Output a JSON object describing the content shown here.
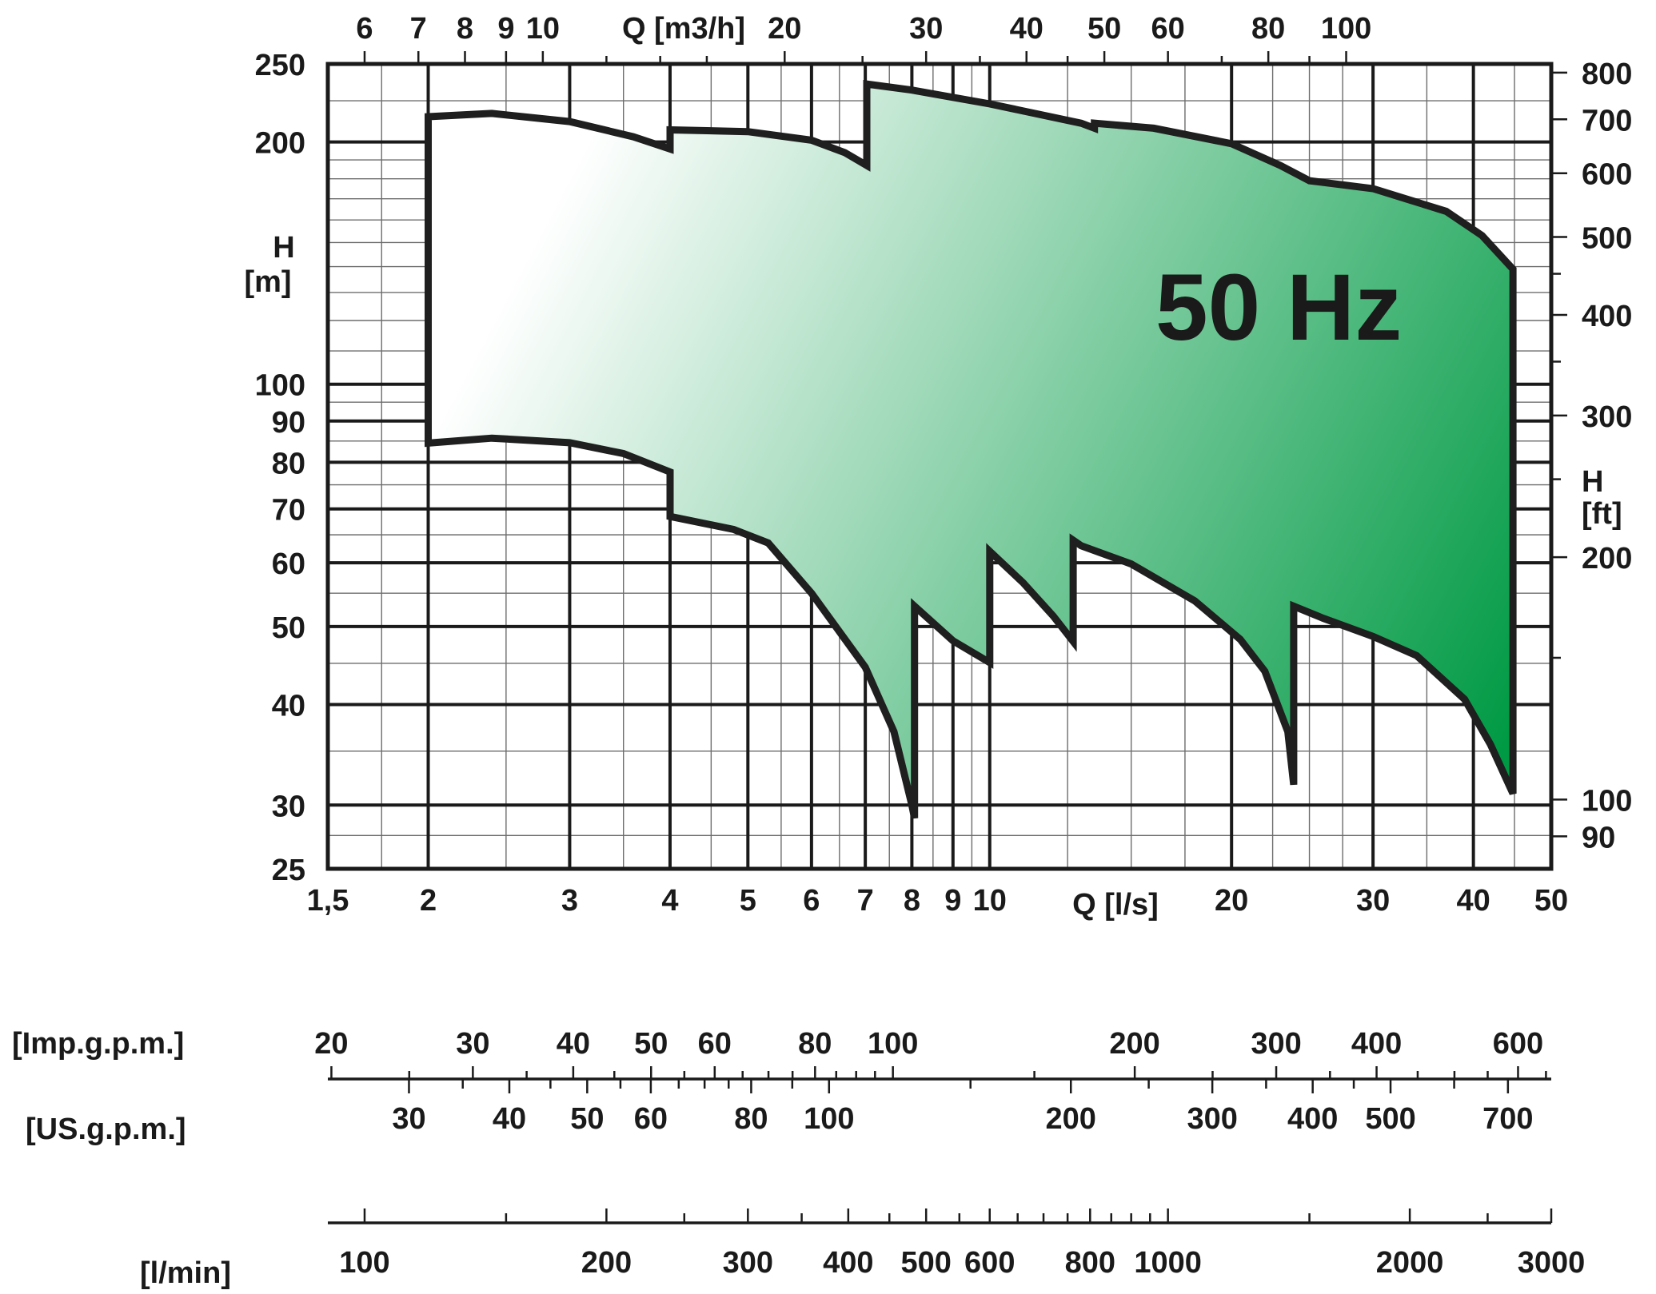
{
  "chart_data": {
    "type": "area",
    "title": "",
    "annotation": "50 Hz",
    "x_axis": {
      "label": "Q [l/s]",
      "scale": "log",
      "range": [
        1.5,
        50
      ],
      "ticks": [
        1.5,
        2,
        3,
        4,
        5,
        6,
        7,
        8,
        9,
        10,
        20,
        30,
        40,
        50
      ],
      "tick_labels": [
        "1,5",
        "2",
        "3",
        "4",
        "5",
        "6",
        "7",
        "8",
        "9",
        "10",
        "20",
        "30",
        "40",
        "50"
      ]
    },
    "x2_axis": {
      "label": "Q [m3/h]",
      "scale": "log",
      "ticks": [
        6,
        7,
        8,
        9,
        10,
        20,
        30,
        40,
        50,
        60,
        80,
        100
      ],
      "tick_labels": [
        "6",
        "7",
        "8",
        "9",
        "10",
        "20",
        "30",
        "40",
        "50",
        "60",
        "80",
        "100"
      ]
    },
    "y_axis": {
      "label": "H",
      "unit": "[m]",
      "scale": "log",
      "range": [
        25,
        250
      ],
      "ticks": [
        25,
        30,
        40,
        50,
        60,
        70,
        80,
        90,
        100,
        200,
        250
      ],
      "tick_labels": [
        "25",
        "30",
        "40",
        "50",
        "60",
        "70",
        "80",
        "90",
        "100",
        "200",
        "250"
      ]
    },
    "y2_axis": {
      "label": "H",
      "unit": "[ft]",
      "scale": "log",
      "ticks": [
        90,
        100,
        200,
        300,
        400,
        500,
        600,
        700,
        800
      ],
      "tick_labels": [
        "90",
        "100",
        "200",
        "300",
        "400",
        "500",
        "600",
        "700",
        "800"
      ]
    },
    "grid": true,
    "region_colors": {
      "start": "#ffffff",
      "end": "#009a44",
      "outline": "#1f1f1f"
    },
    "region_outline": [
      [
        2.0,
        215
      ],
      [
        2.4,
        217
      ],
      [
        3.0,
        212
      ],
      [
        3.6,
        203
      ],
      [
        4.0,
        196
      ],
      [
        4.0,
        207
      ],
      [
        5.0,
        206
      ],
      [
        6.0,
        201
      ],
      [
        6.6,
        194
      ],
      [
        7.03,
        187
      ],
      [
        7.03,
        236
      ],
      [
        8.0,
        232
      ],
      [
        10.0,
        223
      ],
      [
        13.0,
        211
      ],
      [
        13.5,
        208
      ],
      [
        13.5,
        211
      ],
      [
        16.0,
        208
      ],
      [
        20.0,
        199
      ],
      [
        23.0,
        187
      ],
      [
        25.0,
        179
      ],
      [
        30.0,
        175
      ],
      [
        37.0,
        164
      ],
      [
        41.0,
        153
      ],
      [
        44.8,
        139
      ],
      [
        44.8,
        31.0
      ],
      [
        42.0,
        35.7
      ],
      [
        39.0,
        40.6
      ],
      [
        34.0,
        46.0
      ],
      [
        30.0,
        48.6
      ],
      [
        26.0,
        51.2
      ],
      [
        23.9,
        53.0
      ],
      [
        23.9,
        31.8
      ],
      [
        23.5,
        37.0
      ],
      [
        22.0,
        44.0
      ],
      [
        20.5,
        48.2
      ],
      [
        18.0,
        53.8
      ],
      [
        15.0,
        59.8
      ],
      [
        13.0,
        63.0
      ],
      [
        12.7,
        64.0
      ],
      [
        12.7,
        47.9
      ],
      [
        12.0,
        51.5
      ],
      [
        11.0,
        56.7
      ],
      [
        10.0,
        62.0
      ],
      [
        10.0,
        45.1
      ],
      [
        9.0,
        48.0
      ],
      [
        8.06,
        53.0
      ],
      [
        8.06,
        28.9
      ],
      [
        8.0,
        30.0
      ],
      [
        7.6,
        37.0
      ],
      [
        7.0,
        44.5
      ],
      [
        6.0,
        55.0
      ],
      [
        5.3,
        63.5
      ],
      [
        4.8,
        66.0
      ],
      [
        4.0,
        68.5
      ],
      [
        4.0,
        77.8
      ],
      [
        3.5,
        82.0
      ],
      [
        3.0,
        84.6
      ],
      [
        2.4,
        85.7
      ],
      [
        2.0,
        84.5
      ]
    ]
  },
  "flow_scales": [
    {
      "label": "[Imp.g.p.m.]",
      "tick_labels": [
        "20",
        "30",
        "40",
        "50",
        "60",
        "80",
        "100",
        "200",
        "300",
        "400",
        "600"
      ]
    },
    {
      "label": "[US.g.p.m.]",
      "tick_labels": [
        "30",
        "40",
        "50",
        "60",
        "80",
        "100",
        "200",
        "300",
        "400",
        "500",
        "700"
      ]
    },
    {
      "label": "[l/min]",
      "tick_labels": [
        "100",
        "200",
        "300",
        "400",
        "500",
        "600",
        "800",
        "1000",
        "2000",
        "3000"
      ]
    }
  ]
}
